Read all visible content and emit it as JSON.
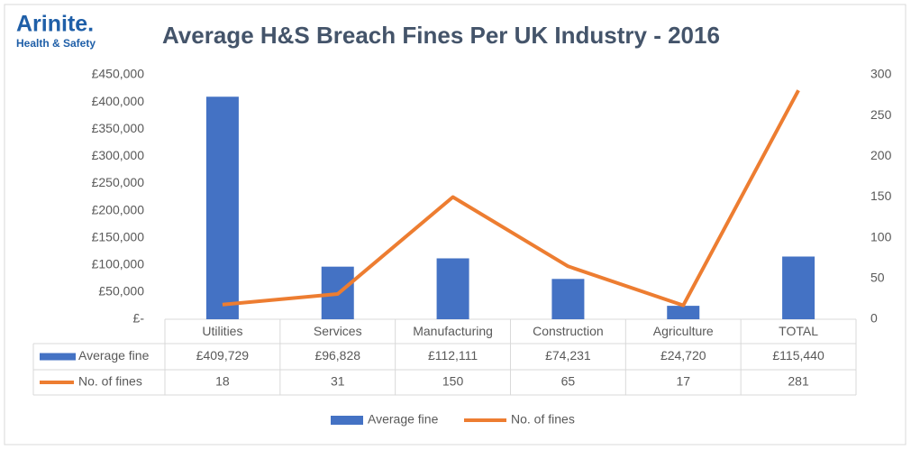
{
  "logo": {
    "name": "Arinite.",
    "tagline": "Health & Safety"
  },
  "chart_data": {
    "type": "bar",
    "title": "Average H&S Breach Fines Per UK Industry - 2016",
    "categories": [
      "Utilities",
      "Services",
      "Manufacturing",
      "Construction",
      "Agriculture",
      "TOTAL"
    ],
    "series": [
      {
        "name": "Average fine",
        "type": "bar",
        "color": "#4472c4",
        "values": [
          409729,
          96828,
          112111,
          74231,
          24720,
          115440
        ],
        "value_labels": [
          "£409,729",
          "£96,828",
          "£112,111",
          "£74,231",
          "£24,720",
          "£115,440"
        ]
      },
      {
        "name": "No. of fines",
        "type": "line",
        "color": "#ed7d31",
        "axis": "y2",
        "values": [
          18,
          31,
          150,
          65,
          17,
          281
        ]
      }
    ],
    "ylim": [
      0,
      450000
    ],
    "yticks": [
      {
        "value": 0,
        "label": "£-"
      },
      {
        "value": 50000,
        "label": "£50,000"
      },
      {
        "value": 100000,
        "label": "£100,000"
      },
      {
        "value": 150000,
        "label": "£150,000"
      },
      {
        "value": 200000,
        "label": "£200,000"
      },
      {
        "value": 250000,
        "label": "£250,000"
      },
      {
        "value": 300000,
        "label": "£300,000"
      },
      {
        "value": 350000,
        "label": "£350,000"
      },
      {
        "value": 400000,
        "label": "£400,000"
      },
      {
        "value": 450000,
        "label": "£450,000"
      }
    ],
    "y2lim": [
      0,
      300
    ],
    "y2ticks": [
      0,
      50,
      100,
      150,
      200,
      250,
      300
    ],
    "grid": false,
    "legend": "bottom"
  }
}
